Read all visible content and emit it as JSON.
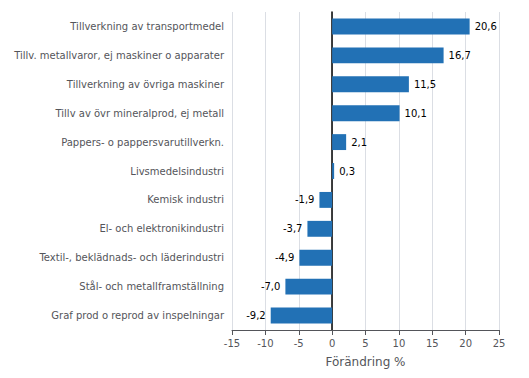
{
  "chart_data": {
    "type": "bar",
    "orientation": "horizontal",
    "categories": [
      "Graf prod o reprod av inspelningar",
      "Stål- och metallframställning",
      "Textil-, beklädnads- och läderindustri",
      "El- och elektronikindustri",
      "Kemisk industri",
      "Livsmedelsindustri",
      "Pappers- o pappersvarutillverkn.",
      "Tillv av övr mineralprod, ej metall",
      "Tillverkning av övriga maskiner",
      "Tillv. metallvaror, ej maskiner o apparater",
      "Tillverkning av transportmedel"
    ],
    "values": [
      -9.2,
      -7.0,
      -4.9,
      -3.7,
      -1.9,
      0.3,
      2.1,
      10.1,
      11.5,
      16.7,
      20.6
    ],
    "value_labels": [
      "-9,2",
      "-7,0",
      "-4,9",
      "-3,7",
      "-1,9",
      "0,3",
      "2,1",
      "10,1",
      "11,5",
      "16,7",
      "20,6"
    ],
    "color": "#2271b5",
    "xlabel": "Förändring %",
    "xlim": [
      -15,
      25
    ],
    "xticks": [
      -15,
      -10,
      -5,
      0,
      5,
      10,
      15,
      20,
      25
    ],
    "grid": true,
    "data_labels": true
  }
}
